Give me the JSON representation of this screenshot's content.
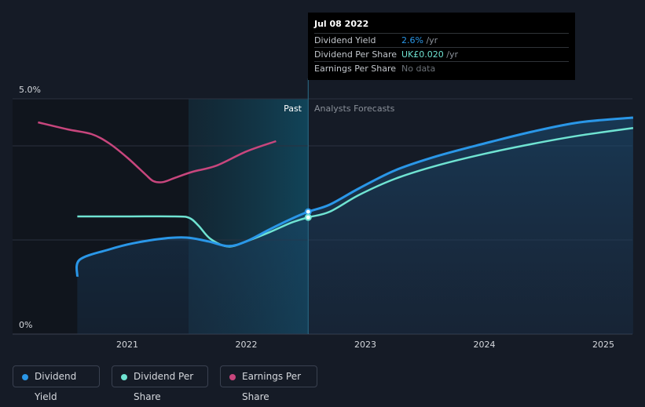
{
  "chart_data": {
    "type": "line",
    "y_axis": {
      "ylim": [
        0,
        5.0
      ],
      "tick_labels": [
        "5.0%",
        "0%"
      ]
    },
    "x_axis": {
      "tick_labels": [
        "2021",
        "2022",
        "2023",
        "2024",
        "2025"
      ],
      "tick_values": [
        2021,
        2022,
        2023,
        2024,
        2025
      ]
    },
    "regions": {
      "past_label": "Past",
      "forecast_label": "Analysts Forecasts"
    },
    "series": [
      {
        "name": "Dividend Yield",
        "color": "#2a97e8",
        "filled": true,
        "x": [
          2020.58,
          2020.6,
          2020.85,
          2021.05,
          2021.3,
          2021.5,
          2021.68,
          2021.85,
          2022.0,
          2022.2,
          2022.38,
          2022.52,
          2022.7,
          2022.95,
          2023.25,
          2023.6,
          2024.0,
          2024.4,
          2024.8,
          2025.25
        ],
        "y": [
          1.22,
          1.58,
          1.8,
          1.93,
          2.03,
          2.05,
          1.97,
          1.87,
          1.97,
          2.23,
          2.45,
          2.6,
          2.75,
          3.1,
          3.48,
          3.78,
          4.05,
          4.3,
          4.5,
          4.6
        ]
      },
      {
        "name": "Dividend Per Share",
        "color": "#6fe3d2",
        "filled": false,
        "x": [
          2020.58,
          2021.0,
          2021.4,
          2021.52,
          2021.6,
          2021.7,
          2021.85,
          2022.0,
          2022.2,
          2022.38,
          2022.52,
          2022.7,
          2022.95,
          2023.25,
          2023.6,
          2024.0,
          2024.4,
          2024.8,
          2025.25
        ],
        "y": [
          2.5,
          2.5,
          2.5,
          2.47,
          2.3,
          2.02,
          1.86,
          1.97,
          2.17,
          2.37,
          2.48,
          2.6,
          2.96,
          3.3,
          3.58,
          3.83,
          4.04,
          4.22,
          4.38
        ]
      },
      {
        "name": "Earnings Per Share",
        "color": "#c8467d",
        "filled": false,
        "x": [
          2020.25,
          2020.5,
          2020.7,
          2020.85,
          2021.0,
          2021.15,
          2021.22,
          2021.3,
          2021.4,
          2021.55,
          2021.75,
          2022.0,
          2022.25
        ],
        "y": [
          4.5,
          4.35,
          4.25,
          4.05,
          3.75,
          3.4,
          3.25,
          3.23,
          3.32,
          3.45,
          3.58,
          3.88,
          4.1
        ]
      }
    ],
    "highlight_x": 2022.52
  },
  "tooltip": {
    "date": "Jul 08 2022",
    "rows": [
      {
        "label": "Dividend Yield",
        "value": "2.6%",
        "unit": " /yr"
      },
      {
        "label": "Dividend Per Share",
        "value": "UK£0.020",
        "unit": " /yr"
      },
      {
        "label": "Earnings Per Share",
        "value": "No data",
        "unit": ""
      }
    ]
  },
  "legend": [
    {
      "label": "Dividend Yield",
      "color": "#2a97e8"
    },
    {
      "label": "Dividend Per Share",
      "color": "#6fe3d2"
    },
    {
      "label": "Earnings Per Share",
      "color": "#c8467d"
    }
  ]
}
